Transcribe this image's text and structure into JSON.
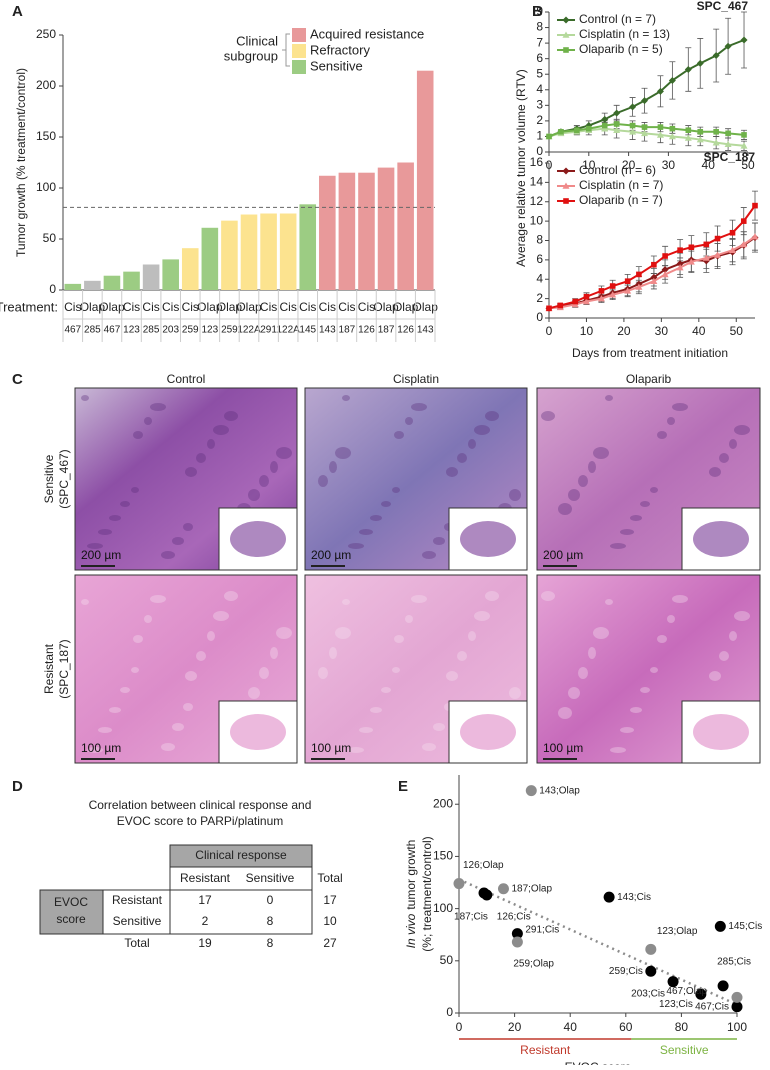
{
  "chart_data": [
    {
      "type": "bar",
      "panel": "A",
      "ylabel": "Tumor growth (% treatment/control)",
      "ylim": [
        0,
        250
      ],
      "yticks": [
        0,
        50,
        100,
        150,
        200,
        250
      ],
      "row_label": "Treatment:",
      "categories": [
        "Cis",
        "Olap",
        "Olap",
        "Cis",
        "Cis",
        "Cis",
        "Cis",
        "Olap",
        "Olap",
        "Olap",
        "Cis",
        "Cis",
        "Cis",
        "Cis",
        "Cis",
        "Cis",
        "Olap",
        "Olap",
        "Olap"
      ],
      "models": [
        "467",
        "285",
        "467",
        "123",
        "285",
        "203",
        "259",
        "123",
        "259",
        "122A",
        "291",
        "122A",
        "145",
        "143",
        "187",
        "126",
        "187",
        "126",
        "143"
      ],
      "values": [
        6,
        9,
        14,
        18,
        25,
        30,
        41,
        61,
        68,
        74,
        75,
        75,
        84,
        112,
        115,
        115,
        120,
        125,
        215
      ],
      "colors": [
        "#9ccc83",
        "#bdbdbd",
        "#9ccc83",
        "#9ccc83",
        "#bdbdbd",
        "#9ccc83",
        "#fce38f",
        "#9ccc83",
        "#fce38f",
        "#fce38f",
        "#fce38f",
        "#fce38f",
        "#9ccc83",
        "#e8999a",
        "#e8999a",
        "#e8999a",
        "#e8999a",
        "#e8999a",
        "#e8999a"
      ],
      "reference_line": 81,
      "legend_title": [
        "Clinical",
        "subgroup"
      ],
      "legend": [
        {
          "name": "Acquired resistance",
          "color": "#e8999a"
        },
        {
          "name": "Refractory",
          "color": "#fce38f"
        },
        {
          "name": "Sensitive",
          "color": "#9ccc83"
        }
      ]
    },
    {
      "type": "line",
      "panel": "B",
      "title": "SPC_467",
      "ylabel": "Average relative tumor volume (RTV)",
      "xlim": [
        0,
        50
      ],
      "xticks": [
        0,
        10,
        20,
        30,
        40,
        50
      ],
      "ylim": [
        0,
        9
      ],
      "yticks": [
        0,
        1,
        2,
        3,
        4,
        5,
        6,
        7,
        8,
        9
      ],
      "x": [
        0,
        3,
        7,
        10,
        14,
        17,
        21,
        24,
        28,
        31,
        35,
        38,
        42,
        45,
        49
      ],
      "series": [
        {
          "name": "Control (n = 7)",
          "color": "#3a6b2a",
          "marker": "diamond",
          "values": [
            1,
            1.3,
            1.5,
            1.7,
            2.1,
            2.5,
            2.9,
            3.3,
            3.9,
            4.6,
            5.3,
            5.7,
            6.2,
            6.8,
            7.2
          ],
          "errors": [
            0,
            0.1,
            0.2,
            0.3,
            0.4,
            0.5,
            0.6,
            0.8,
            1,
            1.2,
            1.4,
            1.6,
            1.7,
            1.8,
            1.8
          ]
        },
        {
          "name": "Cisplatin (n = 13)",
          "color": "#b5d99c",
          "marker": "triangle",
          "values": [
            1,
            1.2,
            1.3,
            1.4,
            1.5,
            1.4,
            1.3,
            1.2,
            1.1,
            1,
            0.9,
            0.8,
            0.6,
            0.5,
            0.4
          ],
          "errors": [
            0,
            0.1,
            0.2,
            0.3,
            0.4,
            0.5,
            0.5,
            0.5,
            0.5,
            0.5,
            0.5,
            0.4,
            0.4,
            0.4,
            0.3
          ]
        },
        {
          "name": "Olaparib (n = 5)",
          "color": "#6fb24a",
          "marker": "square",
          "values": [
            1,
            1.3,
            1.4,
            1.5,
            1.7,
            1.8,
            1.7,
            1.6,
            1.6,
            1.5,
            1.4,
            1.3,
            1.3,
            1.2,
            1.1
          ],
          "errors": [
            0,
            0.1,
            0.2,
            0.2,
            0.3,
            0.3,
            0.3,
            0.3,
            0.3,
            0.3,
            0.3,
            0.3,
            0.3,
            0.3,
            0.3
          ]
        }
      ]
    },
    {
      "type": "line",
      "title": "SPC_187",
      "xlabel": "Days from treatment initiation",
      "xlim": [
        0,
        55
      ],
      "xticks": [
        0,
        10,
        20,
        30,
        40,
        50
      ],
      "ylim": [
        0,
        16
      ],
      "yticks": [
        0,
        2,
        4,
        6,
        8,
        10,
        12,
        14,
        16
      ],
      "x": [
        0,
        3,
        7,
        10,
        14,
        17,
        21,
        24,
        28,
        31,
        35,
        38,
        42,
        45,
        49,
        52,
        55
      ],
      "series": [
        {
          "name": "Control (n = 6)",
          "color": "#8b1a1a",
          "marker": "diamond",
          "values": [
            1,
            1.2,
            1.5,
            1.8,
            2.2,
            2.6,
            3,
            3.5,
            4.2,
            5,
            5.6,
            6,
            5.9,
            6.4,
            6.8,
            7.5,
            8.3
          ],
          "errors": [
            0,
            0.2,
            0.3,
            0.4,
            0.5,
            0.6,
            0.7,
            0.8,
            0.9,
            1,
            1.1,
            1.2,
            1.2,
            1.3,
            1.3,
            1.4,
            1.5
          ]
        },
        {
          "name": "Cisplatin (n = 7)",
          "color": "#f08a8a",
          "marker": "triangle",
          "values": [
            1,
            1.1,
            1.4,
            1.7,
            2,
            2.4,
            2.8,
            3.2,
            3.8,
            4.5,
            5.2,
            5.8,
            6.2,
            6.5,
            7,
            7.6,
            8.4
          ],
          "errors": [
            0,
            0.2,
            0.3,
            0.3,
            0.4,
            0.5,
            0.6,
            0.7,
            0.8,
            0.9,
            1,
            1.1,
            1.1,
            1.2,
            1.2,
            1.3,
            1.4
          ]
        },
        {
          "name": "Olaparib (n = 7)",
          "color": "#e01010",
          "marker": "square",
          "values": [
            1,
            1.3,
            1.7,
            2.2,
            2.8,
            3.3,
            3.8,
            4.5,
            5.5,
            6.4,
            7,
            7.3,
            7.6,
            8.2,
            8.8,
            10,
            11.6
          ],
          "errors": [
            0,
            0.2,
            0.3,
            0.4,
            0.5,
            0.6,
            0.7,
            0.8,
            0.9,
            1,
            1.1,
            1.2,
            1.2,
            1.3,
            1.3,
            1.4,
            1.5
          ]
        }
      ]
    },
    {
      "type": "scatter",
      "panel": "E",
      "ylabel": [
        "In vivo",
        "tumor growth",
        "(%; treatment/control)"
      ],
      "xlabel": "EVOC score",
      "xlim": [
        0,
        100
      ],
      "xticks": [
        0,
        20,
        40,
        60,
        80,
        100
      ],
      "ylim": [
        0,
        228
      ],
      "yticks": [
        0,
        50,
        100,
        150,
        200
      ],
      "series": [
        {
          "color": "#000000",
          "x": [
            9,
            10,
            54,
            21,
            94,
            69,
            77,
            87,
            95,
            100
          ],
          "values": [
            115,
            113,
            111,
            76,
            83,
            40,
            30,
            18,
            26,
            6
          ],
          "point_labels": [
            "187;Cis",
            "126;Cis",
            "143;Cis",
            "291;Cis",
            "145;Cis",
            "259;Cis",
            "203;Cis",
            "123;Cis",
            "285;Cis",
            "467;Cis"
          ]
        },
        {
          "color": "#8c8c8c",
          "x": [
            26,
            0,
            16,
            21,
            69,
            100
          ],
          "values": [
            213,
            124,
            119,
            68,
            61,
            15
          ],
          "point_labels": [
            "143;Olap",
            "126;Olap",
            "187;Olap",
            "259;Olap",
            "123;Olap",
            "467;Olap"
          ]
        }
      ],
      "trendline": {
        "x": [
          0,
          100
        ],
        "values": [
          128,
          8
        ],
        "color": "#8c8c8c"
      },
      "ranges": [
        {
          "name": "Resistant",
          "from": 0,
          "to": 62,
          "color": "#c0392b"
        },
        {
          "name": "Sensitive",
          "from": 62,
          "to": 100,
          "color": "#7cb342"
        }
      ]
    }
  ],
  "micrographs": {
    "panel": "C",
    "columns": [
      "Control",
      "Cisplatin",
      "Olaparib"
    ],
    "rows": [
      {
        "label": "Sensitive",
        "model": "(SPC_467)",
        "scale_bar": "200 µm"
      },
      {
        "label": "Resistant",
        "model": "(SPC_187)",
        "scale_bar": "100 µm"
      }
    ]
  },
  "table": {
    "panel": "D",
    "title": [
      "Correlation between clinical response and",
      "EVOC score to PARPi/platinum"
    ],
    "column_group": "Clinical response",
    "columns": [
      "Resistant",
      "Sensitive",
      "Total"
    ],
    "row_group": [
      "EVOC",
      "score"
    ],
    "rows": [
      {
        "label": "Resistant",
        "cells": [
          17,
          0,
          17
        ]
      },
      {
        "label": "Sensitive",
        "cells": [
          2,
          8,
          10
        ]
      }
    ],
    "total": {
      "label": "Total",
      "cells": [
        19,
        8,
        27
      ]
    }
  }
}
